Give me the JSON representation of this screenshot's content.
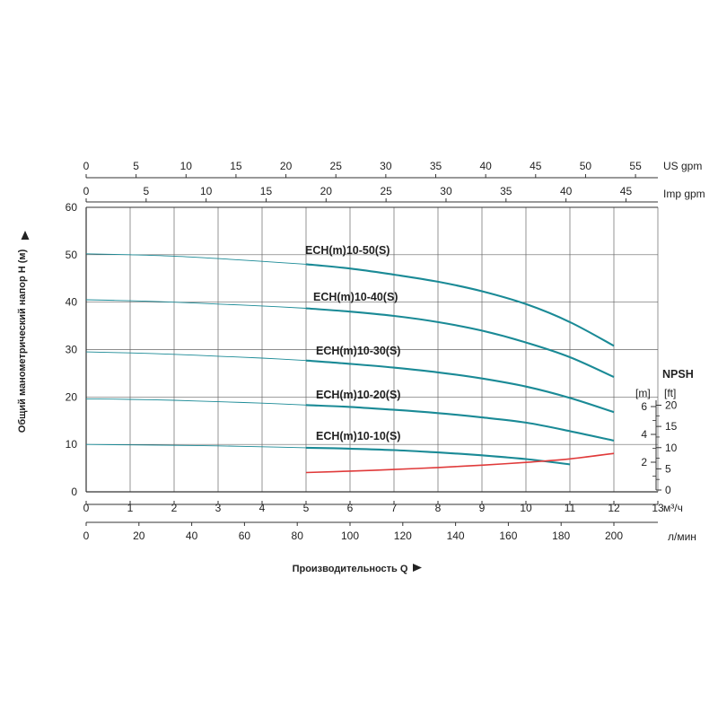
{
  "chart_data": {
    "type": "line",
    "x_axis_m3h": {
      "ticks": [
        0,
        1,
        2,
        3,
        4,
        5,
        6,
        7,
        8,
        9,
        10,
        11,
        12,
        13
      ],
      "unit": "м³/ч",
      "range": [
        0,
        13
      ]
    },
    "x_axis_lmin": {
      "ticks": [
        0,
        20,
        40,
        60,
        80,
        100,
        120,
        140,
        160,
        180,
        200
      ],
      "unit": "л/мин"
    },
    "x_axis_usgpm": {
      "ticks": [
        0,
        5,
        10,
        15,
        20,
        25,
        30,
        35,
        40,
        45,
        50,
        55
      ],
      "unit": "US gpm"
    },
    "x_axis_impgpm": {
      "ticks": [
        0,
        5,
        10,
        15,
        20,
        25,
        30,
        35,
        40,
        45
      ],
      "unit": "Imp gpm"
    },
    "y_axis": {
      "ticks": [
        0,
        10,
        20,
        30,
        40,
        50,
        60
      ],
      "range": [
        0,
        60
      ],
      "label": "Общий манометрический напор Н (м)"
    },
    "xlabel": "Производительность Q",
    "npsh_axis": {
      "title": "NPSH",
      "unit_m": "[m]",
      "unit_ft": "[ft]",
      "ticks_m": [
        2,
        4,
        6
      ],
      "ticks_ft": [
        0,
        5,
        10,
        15,
        20
      ]
    },
    "grid": true,
    "series": [
      {
        "name": "ECH(m)10-50(S)",
        "color": "#1a8a96",
        "x": [
          0,
          1,
          2,
          3,
          4,
          5,
          6,
          7,
          8,
          9,
          10,
          11,
          12
        ],
        "y": [
          50.2,
          50.0,
          49.7,
          49.2,
          48.6,
          48.0,
          47.1,
          45.8,
          44.3,
          42.3,
          39.6,
          35.8,
          30.8
        ]
      },
      {
        "name": "ECH(m)10-40(S)",
        "color": "#1a8a96",
        "x": [
          0,
          1,
          2,
          3,
          4,
          5,
          6,
          7,
          8,
          9,
          10,
          11,
          12
        ],
        "y": [
          40.5,
          40.3,
          40.0,
          39.6,
          39.2,
          38.7,
          38.0,
          37.1,
          35.8,
          34.0,
          31.5,
          28.4,
          24.2
        ]
      },
      {
        "name": "ECH(m)10-30(S)",
        "color": "#1a8a96",
        "x": [
          0,
          1,
          2,
          3,
          4,
          5,
          6,
          7,
          8,
          9,
          10,
          11,
          12
        ],
        "y": [
          29.5,
          29.3,
          29.0,
          28.6,
          28.2,
          27.7,
          27.0,
          26.2,
          25.2,
          23.9,
          22.2,
          19.8,
          16.8
        ]
      },
      {
        "name": "ECH(m)10-20(S)",
        "color": "#1a8a96",
        "x": [
          0,
          1,
          2,
          3,
          4,
          5,
          6,
          7,
          8,
          9,
          10,
          11,
          12
        ],
        "y": [
          19.6,
          19.5,
          19.3,
          19.0,
          18.7,
          18.3,
          17.9,
          17.3,
          16.6,
          15.7,
          14.6,
          12.8,
          10.8
        ]
      },
      {
        "name": "ECH(m)10-10(S)",
        "color": "#1a8a96",
        "x": [
          0,
          1,
          2,
          3,
          4,
          5,
          6,
          7,
          8,
          9,
          10,
          11
        ],
        "y": [
          10.0,
          9.9,
          9.8,
          9.7,
          9.5,
          9.3,
          9.1,
          8.8,
          8.3,
          7.7,
          6.9,
          5.8
        ]
      },
      {
        "name": "NPSH",
        "color": "#e03a3a",
        "x": [
          5,
          6,
          7,
          8,
          9,
          10,
          11,
          12
        ],
        "y": [
          1.26,
          1.36,
          1.48,
          1.62,
          1.79,
          1.99,
          2.24,
          2.63
        ]
      }
    ]
  }
}
